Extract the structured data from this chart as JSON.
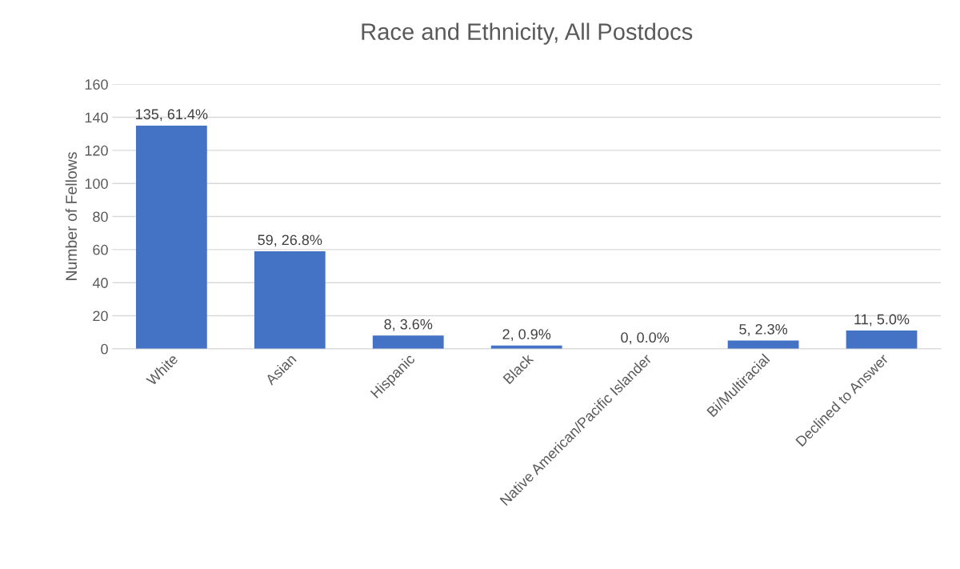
{
  "chart_data": {
    "type": "bar",
    "title": "Race and Ethnicity, All Postdocs",
    "ylabel": "Number of Fellows",
    "categories": [
      "White",
      "Asian",
      "Hispanic",
      "Black",
      "Native American/Pacific Islander",
      "Bi/Multiracial",
      "Declined to Answer"
    ],
    "values": [
      135,
      59,
      8,
      2,
      0,
      5,
      11
    ],
    "value_labels": [
      "135, 61.4%",
      "59, 26.8%",
      "8, 3.6%",
      "2, 0.9%",
      "0, 0.0%",
      "5, 2.3%",
      "11, 5.0%"
    ],
    "color": "#4472c4",
    "ylim": [
      0,
      160
    ],
    "yticks": [
      0,
      20,
      40,
      60,
      80,
      100,
      120,
      140,
      160
    ],
    "grid": "y",
    "legend": false
  }
}
